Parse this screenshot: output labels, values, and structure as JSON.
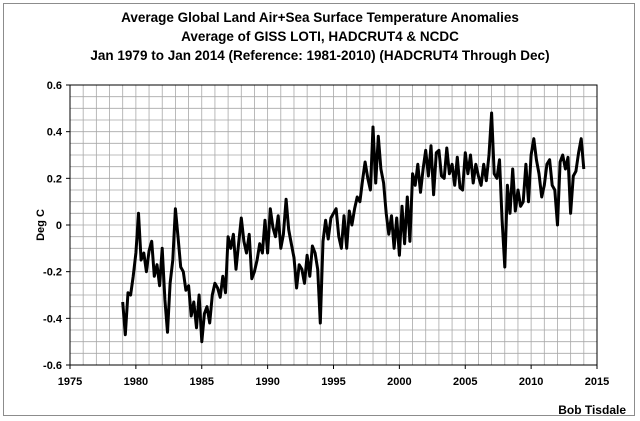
{
  "chart_data": {
    "type": "line",
    "title_lines": [
      "Average Global Land Air+Sea Surface Temperature Anomalies",
      "Average of GISS LOTI, HADCRUT4 & NCDC",
      "Jan 1979 to Jan 2014 (Reference: 1981-2010) (HADCRUT4 Through Dec)"
    ],
    "ylabel": "Deg C",
    "xlabel": "",
    "credit": "Bob Tisdale",
    "xlim": [
      1975,
      2015
    ],
    "ylim": [
      -0.6,
      0.6
    ],
    "x_ticks": [
      "1975",
      "1980",
      "1985",
      "1990",
      "1995",
      "2000",
      "2005",
      "2010",
      "2015"
    ],
    "y_ticks": [
      "-0.6",
      "-0.4",
      "-0.2",
      "0",
      "0.2",
      "0.4",
      "0.6"
    ],
    "grid": true,
    "line_color": "#000000",
    "series": [
      {
        "x": [
          1979.0,
          1979.2,
          1979.4,
          1979.6,
          1979.8,
          1980.0,
          1980.2,
          1980.4,
          1980.6,
          1980.8,
          1981.0,
          1981.2,
          1981.4,
          1981.6,
          1981.8,
          1982.0,
          1982.2,
          1982.4,
          1982.6,
          1982.8,
          1983.0,
          1983.2,
          1983.4,
          1983.6,
          1983.8,
          1984.0,
          1984.2,
          1984.4,
          1984.6,
          1984.8,
          1985.0,
          1985.2,
          1985.4,
          1985.6,
          1985.8,
          1986.0,
          1986.2,
          1986.4,
          1986.6,
          1986.8,
          1987.0,
          1987.2,
          1987.4,
          1987.6,
          1987.8,
          1988.0,
          1988.2,
          1988.4,
          1988.6,
          1988.8,
          1989.0,
          1989.2,
          1989.4,
          1989.6,
          1989.8,
          1990.0,
          1990.2,
          1990.4,
          1990.6,
          1990.8,
          1991.0,
          1991.2,
          1991.4,
          1991.6,
          1991.8,
          1992.0,
          1992.2,
          1992.4,
          1992.6,
          1992.8,
          1993.0,
          1993.2,
          1993.4,
          1993.6,
          1993.8,
          1994.0,
          1994.2,
          1994.4,
          1994.6,
          1994.8,
          1995.0,
          1995.2,
          1995.4,
          1995.6,
          1995.8,
          1996.0,
          1996.2,
          1996.4,
          1996.6,
          1996.8,
          1997.0,
          1997.2,
          1997.4,
          1997.6,
          1997.8,
          1998.0,
          1998.2,
          1998.4,
          1998.6,
          1998.8,
          1999.0,
          1999.2,
          1999.4,
          1999.6,
          1999.8,
          2000.0,
          2000.2,
          2000.4,
          2000.6,
          2000.8,
          2001.0,
          2001.2,
          2001.4,
          2001.6,
          2001.8,
          2002.0,
          2002.2,
          2002.4,
          2002.6,
          2002.8,
          2003.0,
          2003.2,
          2003.4,
          2003.6,
          2003.8,
          2004.0,
          2004.2,
          2004.4,
          2004.6,
          2004.8,
          2005.0,
          2005.2,
          2005.4,
          2005.6,
          2005.8,
          2006.0,
          2006.2,
          2006.4,
          2006.6,
          2006.8,
          2007.0,
          2007.2,
          2007.4,
          2007.6,
          2007.8,
          2008.0,
          2008.2,
          2008.4,
          2008.6,
          2008.8,
          2009.0,
          2009.2,
          2009.4,
          2009.6,
          2009.8,
          2010.0,
          2010.2,
          2010.4,
          2010.6,
          2010.8,
          2011.0,
          2011.2,
          2011.4,
          2011.6,
          2011.8,
          2012.0,
          2012.2,
          2012.4,
          2012.6,
          2012.8,
          2013.0,
          2013.2,
          2013.4,
          2013.6,
          2013.8,
          2014.0
        ],
        "values": [
          -0.33,
          -0.47,
          -0.29,
          -0.3,
          -0.22,
          -0.12,
          0.05,
          -0.15,
          -0.12,
          -0.2,
          -0.11,
          -0.07,
          -0.22,
          -0.17,
          -0.26,
          -0.1,
          -0.32,
          -0.46,
          -0.25,
          -0.15,
          0.07,
          -0.05,
          -0.18,
          -0.2,
          -0.28,
          -0.26,
          -0.39,
          -0.33,
          -0.44,
          -0.3,
          -0.5,
          -0.38,
          -0.35,
          -0.42,
          -0.3,
          -0.25,
          -0.27,
          -0.31,
          -0.22,
          -0.29,
          -0.05,
          -0.1,
          -0.04,
          -0.19,
          -0.08,
          0.03,
          -0.07,
          -0.12,
          -0.04,
          -0.23,
          -0.2,
          -0.15,
          -0.08,
          -0.12,
          0.02,
          -0.12,
          0.07,
          -0.01,
          -0.05,
          0.04,
          -0.1,
          -0.04,
          0.11,
          -0.02,
          -0.08,
          -0.14,
          -0.27,
          -0.17,
          -0.19,
          -0.25,
          -0.13,
          -0.22,
          -0.09,
          -0.12,
          -0.19,
          -0.42,
          -0.07,
          0.02,
          -0.06,
          0.03,
          0.05,
          0.07,
          -0.05,
          -0.1,
          0.04,
          -0.1,
          0.06,
          0.0,
          0.07,
          0.12,
          0.1,
          0.19,
          0.27,
          0.2,
          0.15,
          0.42,
          0.18,
          0.38,
          0.24,
          0.18,
          0.05,
          -0.04,
          0.04,
          -0.1,
          0.03,
          -0.13,
          0.08,
          -0.08,
          0.12,
          -0.07,
          0.22,
          0.17,
          0.26,
          0.14,
          0.24,
          0.32,
          0.21,
          0.34,
          0.13,
          0.31,
          0.32,
          0.21,
          0.2,
          0.33,
          0.22,
          0.26,
          0.17,
          0.29,
          0.16,
          0.15,
          0.31,
          0.22,
          0.3,
          0.18,
          0.26,
          0.21,
          0.17,
          0.26,
          0.19,
          0.3,
          0.48,
          0.22,
          0.2,
          0.28,
          0.02,
          -0.18,
          0.17,
          0.05,
          0.24,
          0.06,
          0.15,
          0.08,
          0.1,
          0.26,
          0.1,
          0.3,
          0.37,
          0.28,
          0.22,
          0.12,
          0.17,
          0.26,
          0.28,
          0.17,
          0.15,
          0.0,
          0.27,
          0.3,
          0.24,
          0.29,
          0.05,
          0.21,
          0.23,
          0.31,
          0.37,
          0.24
        ]
      }
    ]
  }
}
